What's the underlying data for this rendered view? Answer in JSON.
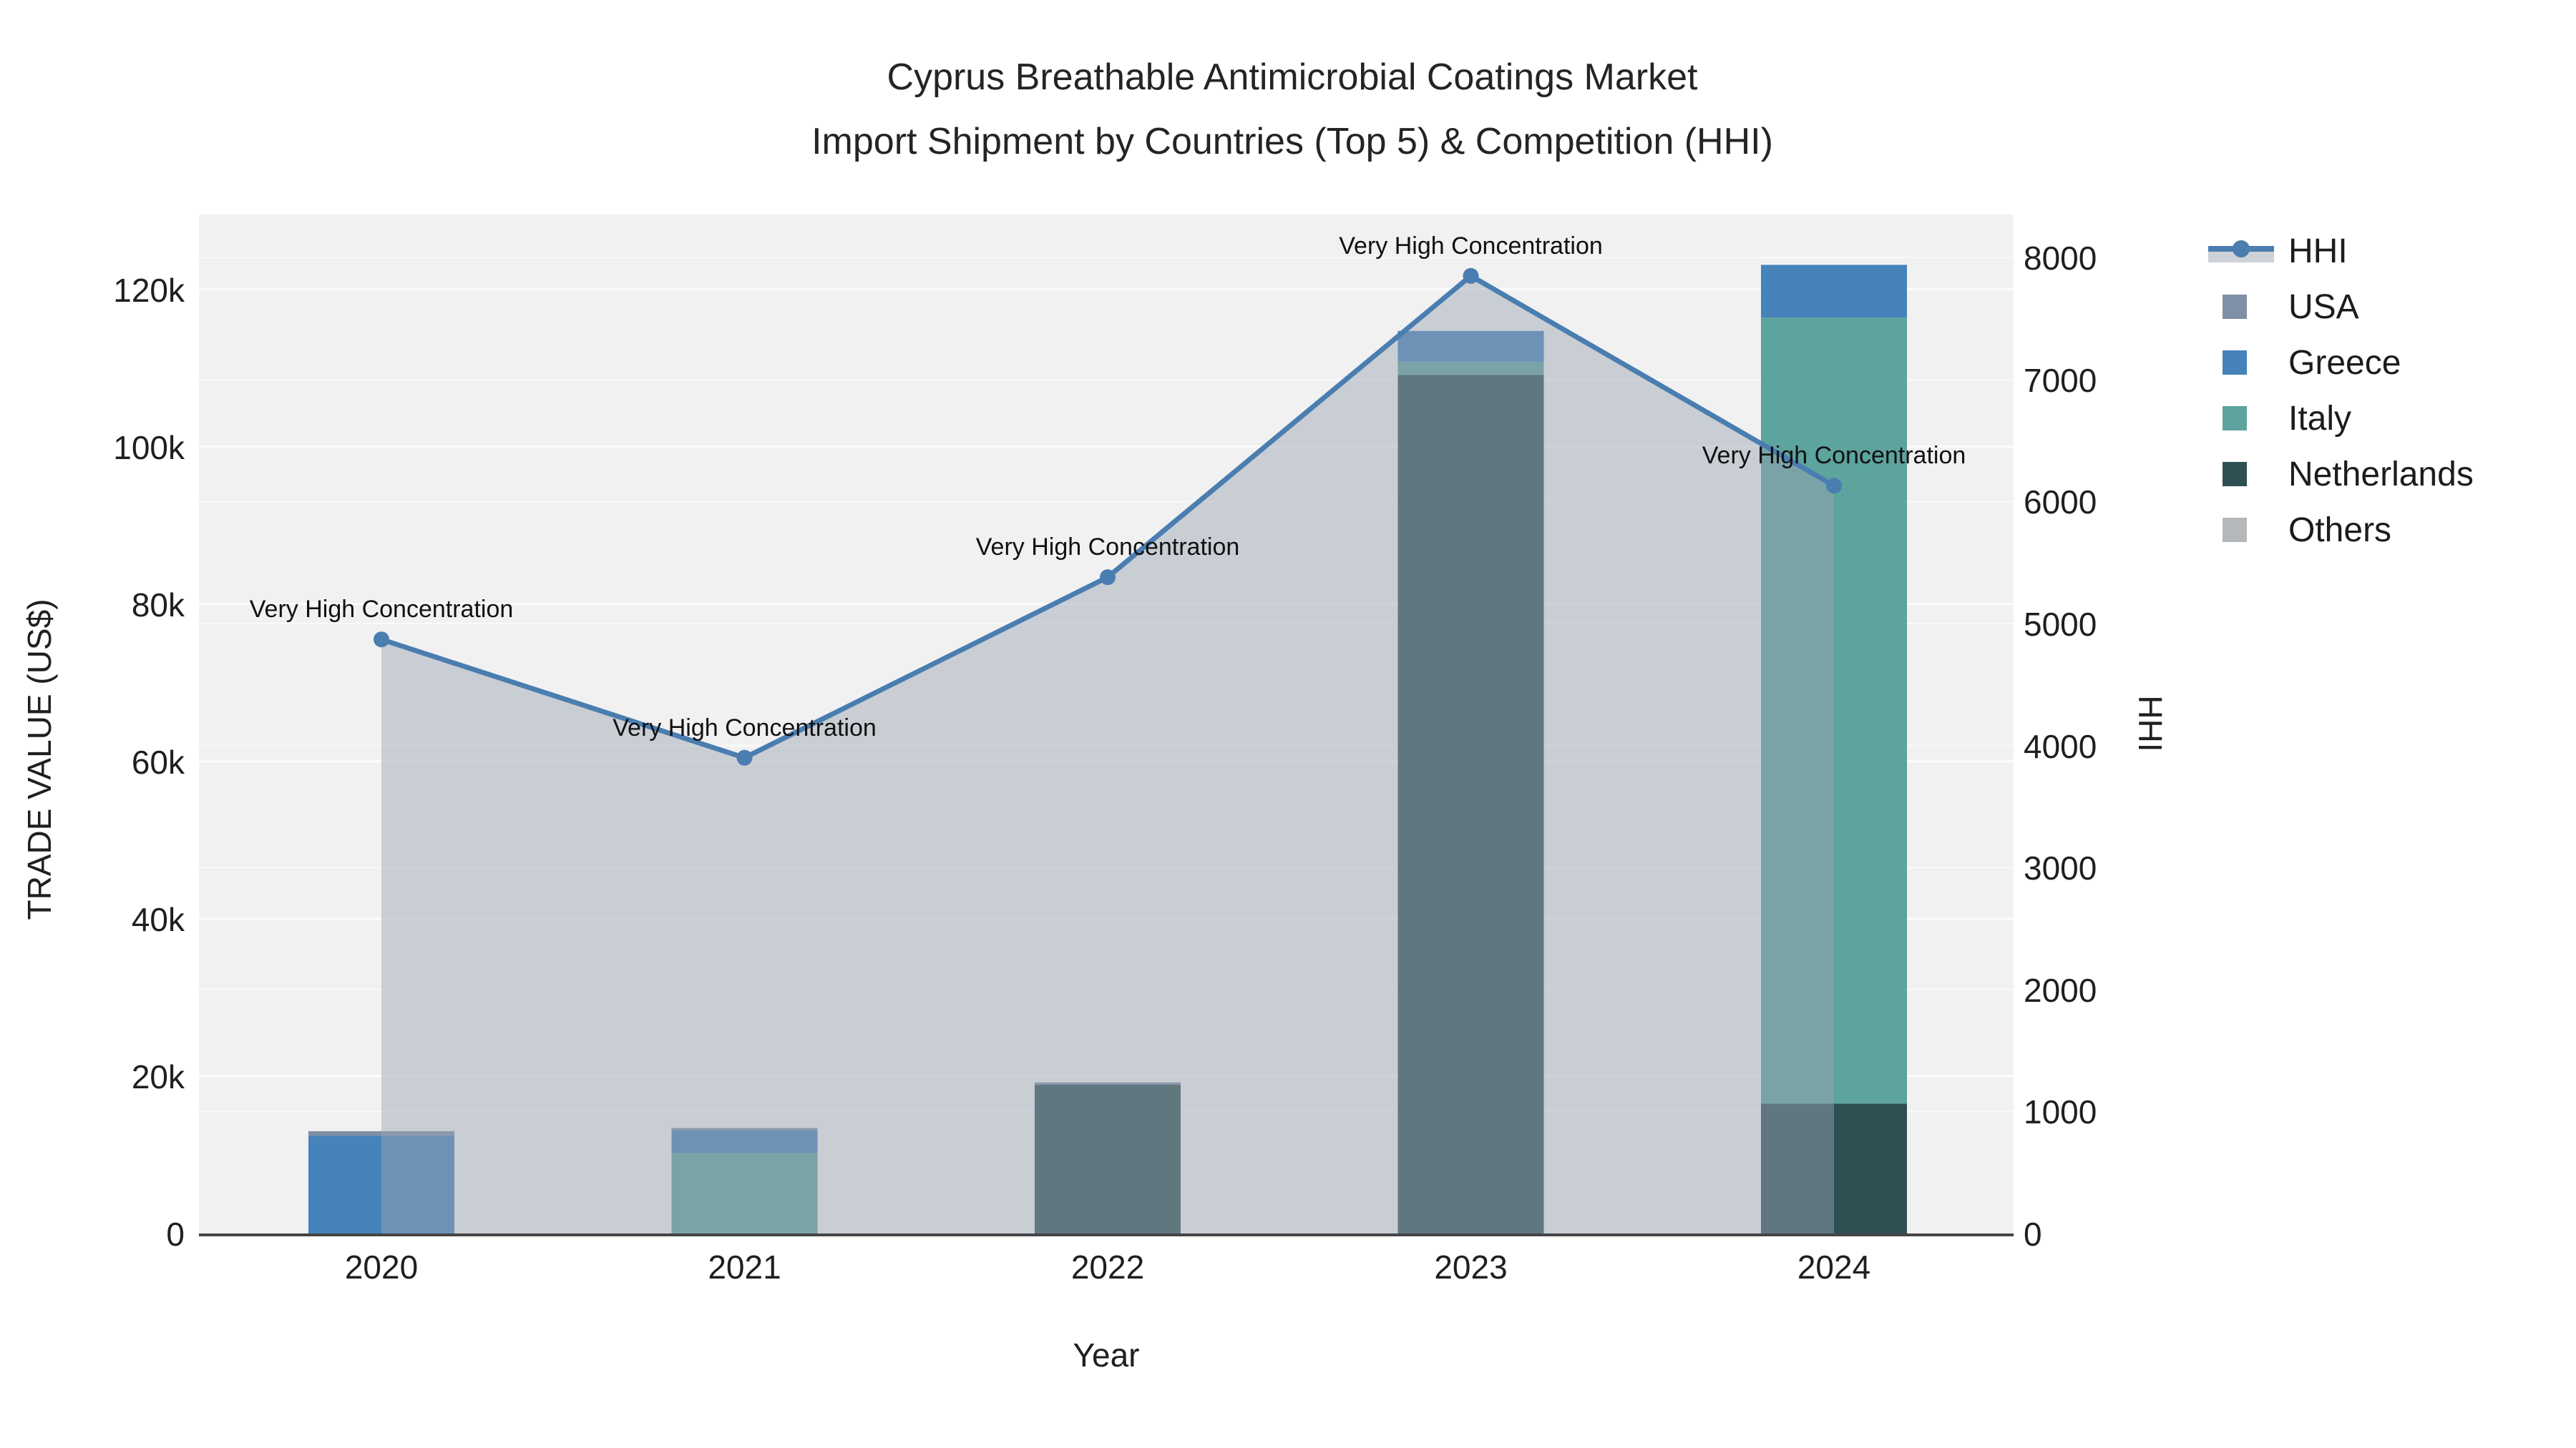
{
  "title": {
    "line1": "Cyprus Breathable Antimicrobial Coatings Market",
    "line2": "Import Shipment by Countries (Top 5) & Competition (HHI)"
  },
  "axes": {
    "x_title": "Year",
    "y_left_title": "TRADE VALUE (US$)",
    "y_right_title": "HHI",
    "x_ticks": [
      "2020",
      "2021",
      "2022",
      "2023",
      "2024"
    ],
    "y_left_ticks": [
      {
        "label": "0",
        "value": 0
      },
      {
        "label": "20k",
        "value": 20000
      },
      {
        "label": "40k",
        "value": 40000
      },
      {
        "label": "60k",
        "value": 60000
      },
      {
        "label": "80k",
        "value": 80000
      },
      {
        "label": "100k",
        "value": 100000
      },
      {
        "label": "120k",
        "value": 120000
      }
    ],
    "y_right_ticks": [
      {
        "label": "0",
        "value": 0
      },
      {
        "label": "1000",
        "value": 1000
      },
      {
        "label": "2000",
        "value": 2000
      },
      {
        "label": "3000",
        "value": 3000
      },
      {
        "label": "4000",
        "value": 4000
      },
      {
        "label": "5000",
        "value": 5000
      },
      {
        "label": "6000",
        "value": 6000
      },
      {
        "label": "7000",
        "value": 7000
      },
      {
        "label": "8000",
        "value": 8000
      }
    ]
  },
  "legend": {
    "items": [
      {
        "label": "HHI",
        "swatch": "line",
        "color": "#4a7db0"
      },
      {
        "label": "USA",
        "swatch": "square",
        "color": "#7e90a5"
      },
      {
        "label": "Greece",
        "swatch": "square",
        "color": "#4583ba"
      },
      {
        "label": "Italy",
        "swatch": "square",
        "color": "#5da39e"
      },
      {
        "label": "Netherlands",
        "swatch": "square",
        "color": "#2e5053"
      },
      {
        "label": "Others",
        "swatch": "square",
        "color": "#b5b8ba"
      }
    ]
  },
  "chart_data": {
    "type": "bar+line",
    "title": "Cyprus Breathable Antimicrobial Coatings Market — Import Shipment by Countries (Top 5) & Competition (HHI)",
    "categories": [
      "2020",
      "2021",
      "2022",
      "2023",
      "2024"
    ],
    "bar_stack_order_bottom_to_top": [
      "Netherlands",
      "Italy",
      "Greece",
      "USA",
      "Others"
    ],
    "series": [
      {
        "name": "Netherlands",
        "color": "#2e5053",
        "values": [
          0,
          0,
          18900,
          109100,
          16500
        ]
      },
      {
        "name": "Italy",
        "color": "#5da39e",
        "values": [
          0,
          10200,
          0,
          1700,
          99900
        ]
      },
      {
        "name": "Greece",
        "color": "#4583ba",
        "values": [
          12400,
          2900,
          0,
          3900,
          6700
        ]
      },
      {
        "name": "USA",
        "color": "#7e90a5",
        "values": [
          600,
          300,
          300,
          0,
          0
        ]
      },
      {
        "name": "Others",
        "color": "#b5b8ba",
        "values": [
          0,
          0,
          0,
          0,
          0
        ]
      }
    ],
    "bar_totals": [
      13000,
      13400,
      19200,
      114700,
      123100
    ],
    "hhi": {
      "name": "HHI",
      "color": "#4a7db0",
      "area_color": "rgba(155,163,178,0.47)",
      "values": [
        4870,
        3900,
        5380,
        7850,
        6130
      ],
      "annotations": [
        "Very High Concentration",
        "Very High Concentration",
        "Very High Concentration",
        "Very High Concentration",
        "Very High Concentration"
      ]
    },
    "xlabel": "Year",
    "ylabel_left": "TRADE VALUE (US$)",
    "ylabel_right": "HHI",
    "y_left_range": [
      0,
      129500
    ],
    "y_right_range": [
      0,
      8353
    ],
    "plot_background": "#f1f1f2",
    "gridline_color": "#ffffff",
    "axis_line_color": "#454545",
    "grid": "on",
    "legend_position": "right"
  }
}
